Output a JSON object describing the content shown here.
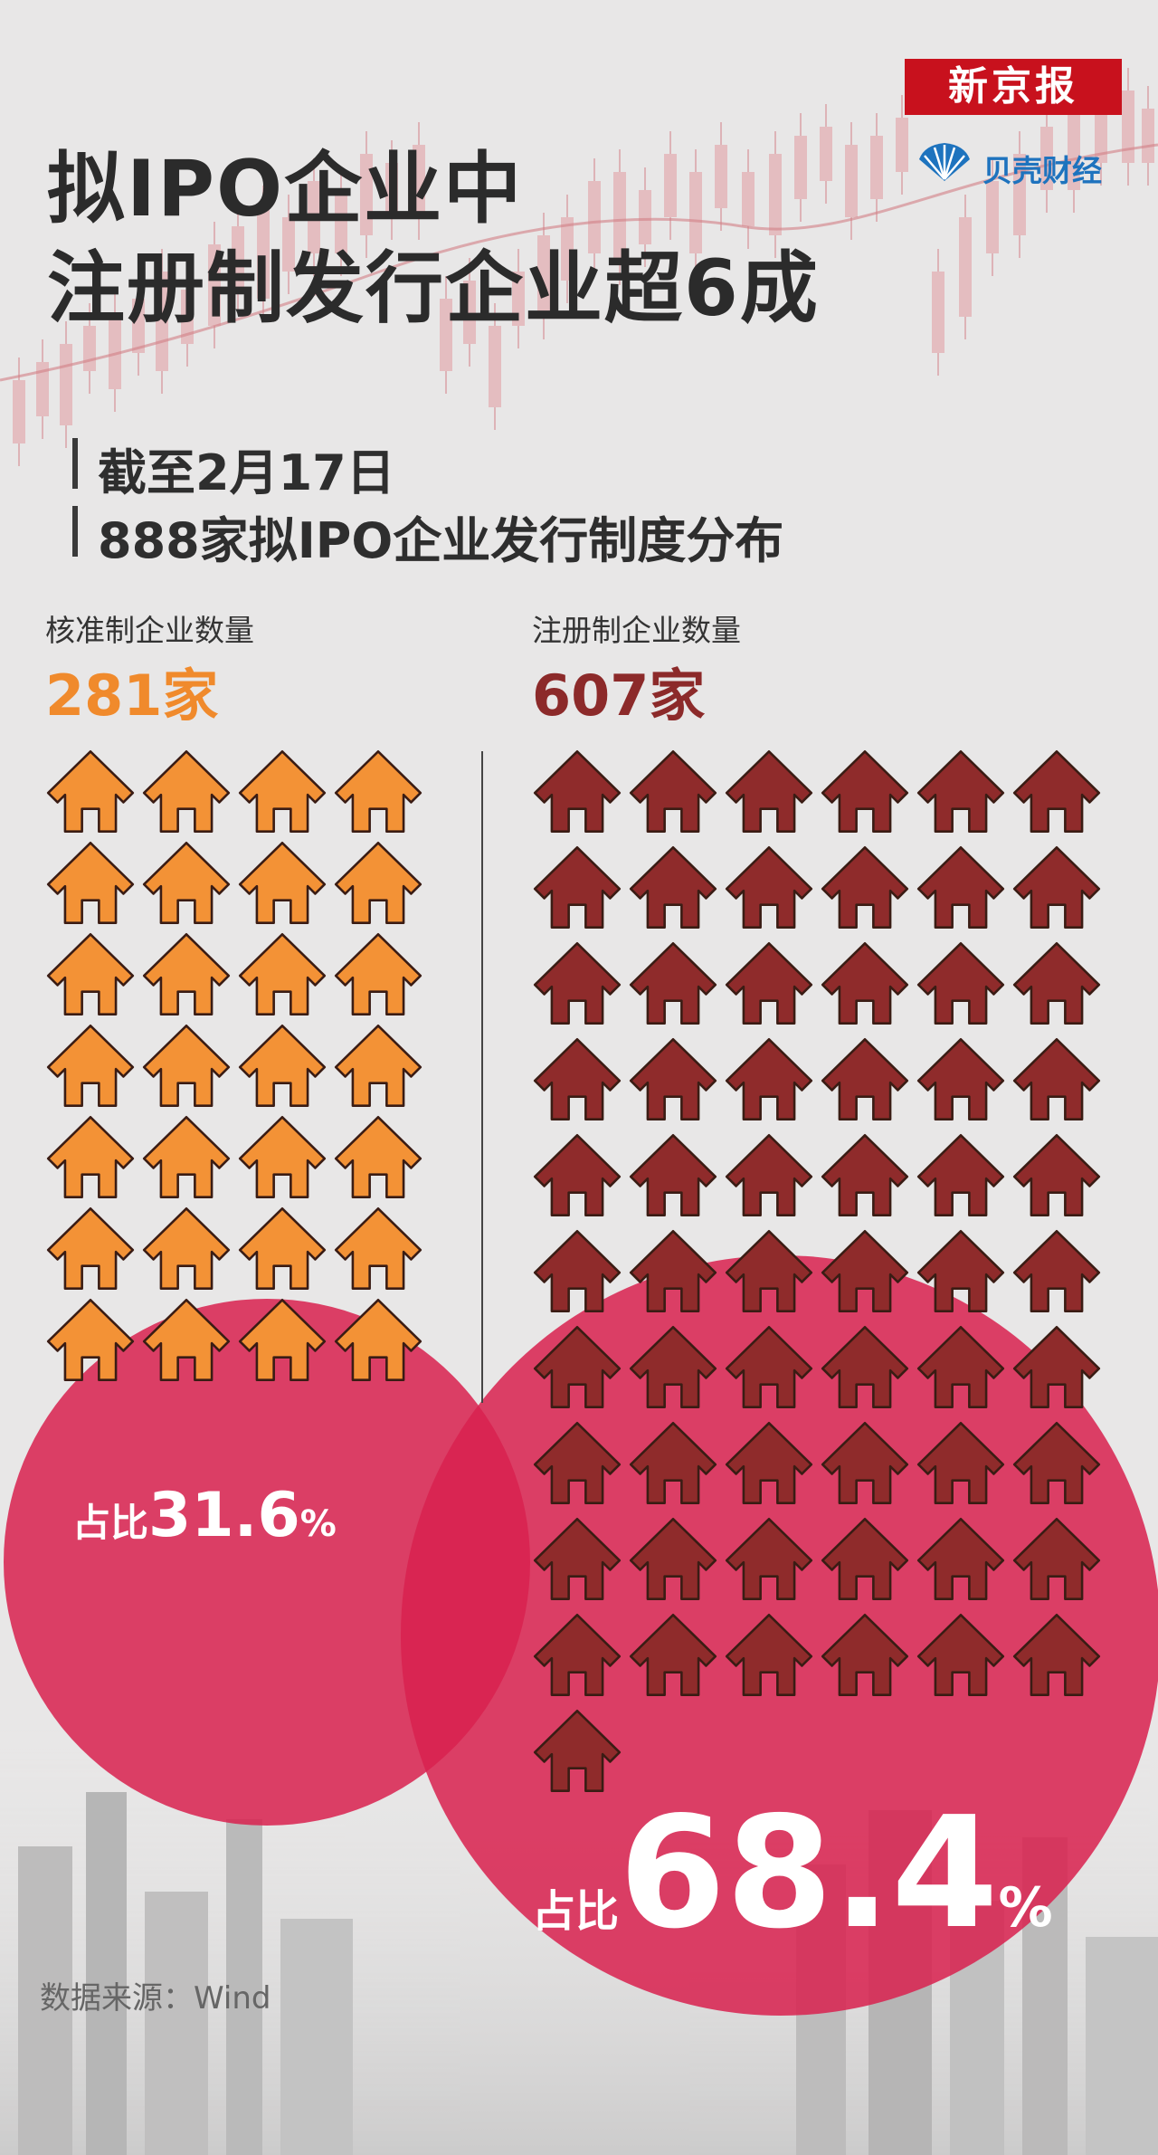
{
  "header": {
    "brand": "新京报",
    "sub_brand": "贝壳财经",
    "title_line1": "拟IPO企业中",
    "title_line2": "注册制发行企业超6成",
    "subtitle_line1": "截至2月17日",
    "subtitle_line2": "888家拟IPO企业发行制度分布"
  },
  "colors": {
    "approval": "#f39236",
    "registration": "#8f2b2b",
    "circle": "#d8224f",
    "brand_red": "#c8111d",
    "brand_blue": "#1e73be"
  },
  "icons": {
    "unit": "house-icon"
  },
  "chart_data": {
    "type": "pictograph",
    "total": 888,
    "series": [
      {
        "name": "核准制企业数量",
        "count": 281,
        "count_label": "281家",
        "share_label_prefix": "占比",
        "share_value": "31.6",
        "share_unit": "%",
        "share": 31.6,
        "icons_shown": 28
      },
      {
        "name": "注册制企业数量",
        "count": 607,
        "count_label": "607家",
        "share_label_prefix": "占比",
        "share_value": "68.4",
        "share_unit": "%",
        "share": 68.4,
        "icons_shown": 61
      }
    ]
  },
  "footer": {
    "source": "数据来源：Wind"
  }
}
